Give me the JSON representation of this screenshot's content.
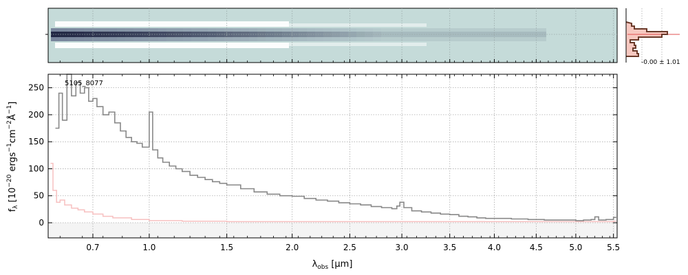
{
  "chart_data": [
    {
      "panel": "2d-spectrum",
      "type": "heatmap",
      "colors": {
        "background": "#c5dbd9",
        "trace_dark": "#1e2340",
        "trace_mid": "#6a7690",
        "gap": "#ffffff"
      }
    },
    {
      "panel": "profile-histogram",
      "type": "line",
      "annotation": "-0.00 ± 1.01",
      "colors": {
        "profile": "#6b3a2a",
        "fill": "#f7c8c0",
        "center_line": "#e05050"
      }
    },
    {
      "panel": "1d-spectrum",
      "type": "line",
      "title": "5105_8077",
      "xlabel_main": "λ",
      "xlabel_sub": "obs",
      "xlabel_unit": " [μm]",
      "ylabel": "f_λ [10^-20 ergs^-1 cm^-2 Å^-1]",
      "xlim": [
        0.5,
        5.55
      ],
      "ylim": [
        -28,
        275
      ],
      "x_scale": "power-0.5",
      "x_ticks": [
        0.7,
        1.0,
        1.5,
        2.0,
        2.5,
        3.0,
        3.5,
        4.0,
        4.5,
        5.0,
        5.5
      ],
      "x_tick_labels": [
        "0.7",
        "1.0",
        "1.5",
        "2.0",
        "2.5",
        "3.0",
        "3.5",
        "4.0",
        "4.5",
        "5.0",
        "5.5"
      ],
      "y_ticks": [
        0,
        50,
        100,
        150,
        200,
        250
      ],
      "y_tick_labels": [
        "0",
        "50",
        "100",
        "150",
        "200",
        "250"
      ],
      "grid": true,
      "series": [
        {
          "role": "flux",
          "color": "#888888",
          "x": [
            0.53,
            0.545,
            0.56,
            0.58,
            0.6,
            0.62,
            0.64,
            0.66,
            0.68,
            0.7,
            0.72,
            0.75,
            0.78,
            0.81,
            0.84,
            0.87,
            0.9,
            0.93,
            0.96,
            1.0,
            1.02,
            1.05,
            1.08,
            1.12,
            1.16,
            1.2,
            1.25,
            1.3,
            1.35,
            1.4,
            1.45,
            1.5,
            1.6,
            1.7,
            1.8,
            1.9,
            2.0,
            2.1,
            2.2,
            2.3,
            2.4,
            2.5,
            2.6,
            2.7,
            2.8,
            2.9,
            2.95,
            2.98,
            3.02,
            3.1,
            3.2,
            3.3,
            3.4,
            3.5,
            3.6,
            3.7,
            3.8,
            3.9,
            4.0,
            4.2,
            4.4,
            4.6,
            4.8,
            5.0,
            5.1,
            5.2,
            5.25,
            5.3,
            5.4,
            5.5
          ],
          "y": [
            175,
            240,
            190,
            275,
            235,
            260,
            240,
            250,
            225,
            230,
            215,
            200,
            205,
            185,
            170,
            158,
            150,
            147,
            140,
            205,
            135,
            120,
            112,
            105,
            100,
            95,
            88,
            84,
            80,
            76,
            73,
            70,
            63,
            57,
            53,
            50,
            49,
            45,
            42,
            40,
            37,
            35,
            33,
            30,
            28,
            26,
            31,
            38,
            28,
            22,
            20,
            18,
            16,
            15,
            12,
            11,
            9,
            8,
            8,
            7,
            6,
            5,
            5,
            4,
            5,
            6,
            11,
            5,
            6,
            10
          ]
        },
        {
          "role": "error",
          "color": "#f7c0c0",
          "x": [
            0.51,
            0.52,
            0.535,
            0.55,
            0.57,
            0.6,
            0.63,
            0.66,
            0.7,
            0.75,
            0.8,
            0.9,
            1.0,
            1.2,
            1.5,
            2.0,
            3.0,
            4.0,
            5.0,
            5.5
          ],
          "y": [
            110,
            60,
            38,
            42,
            33,
            27,
            24,
            20,
            16,
            12,
            9,
            6,
            4,
            3,
            2,
            2,
            2,
            2,
            2,
            3
          ]
        }
      ]
    }
  ]
}
